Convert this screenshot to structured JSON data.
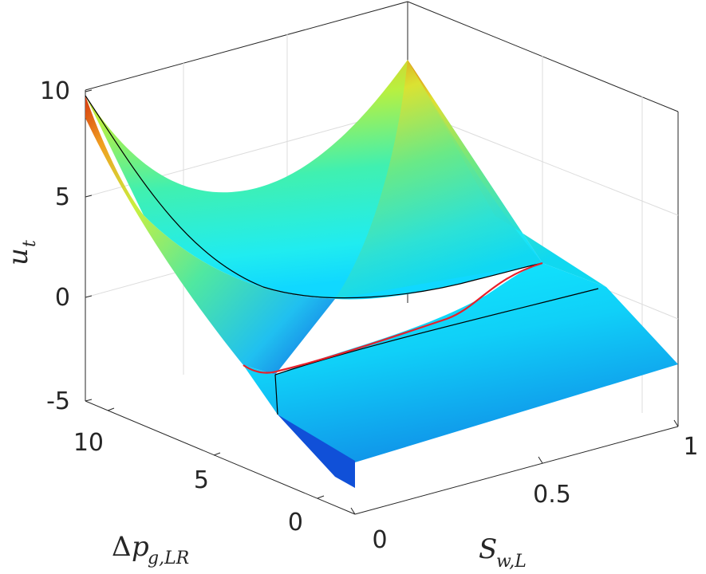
{
  "chart_data": {
    "type": "surface",
    "xlabel": "S",
    "xlabel_sub": "w,L",
    "ylabel": "Δp",
    "ylabel_sub": "g,LR",
    "zlabel": "u",
    "zlabel_sub": "t",
    "x_ticks": [
      "0",
      "0.5",
      "1"
    ],
    "y_ticks": [
      "0",
      "5",
      "10"
    ],
    "z_ticks": [
      "10",
      "5",
      "0",
      "-5"
    ],
    "xlim": [
      0,
      1
    ],
    "ylim": [
      -1,
      12
    ],
    "zlim": [
      -5,
      10
    ],
    "grid": true,
    "colormap": "jet",
    "colors": {
      "red_curve": "#e8202a",
      "black_curve": "#000000",
      "axis": "#262626",
      "grid": "#dcdcdc"
    },
    "curves": [
      {
        "color": "black",
        "description": "u_t at max Δp edge",
        "y": 11,
        "x": [
          0,
          0.2,
          0.4,
          0.6,
          0.8,
          1.0
        ],
        "z": [
          9.5,
          4.2,
          1.8,
          0.3,
          -0.6,
          -1.8
        ]
      },
      {
        "color": "red",
        "description": "kink / transition curve",
        "x": [
          0,
          0.3,
          0.6,
          0.8,
          1.0
        ],
        "z": [
          -3.6,
          -3.5,
          -3.2,
          -2.8,
          -2.5
        ]
      }
    ]
  }
}
